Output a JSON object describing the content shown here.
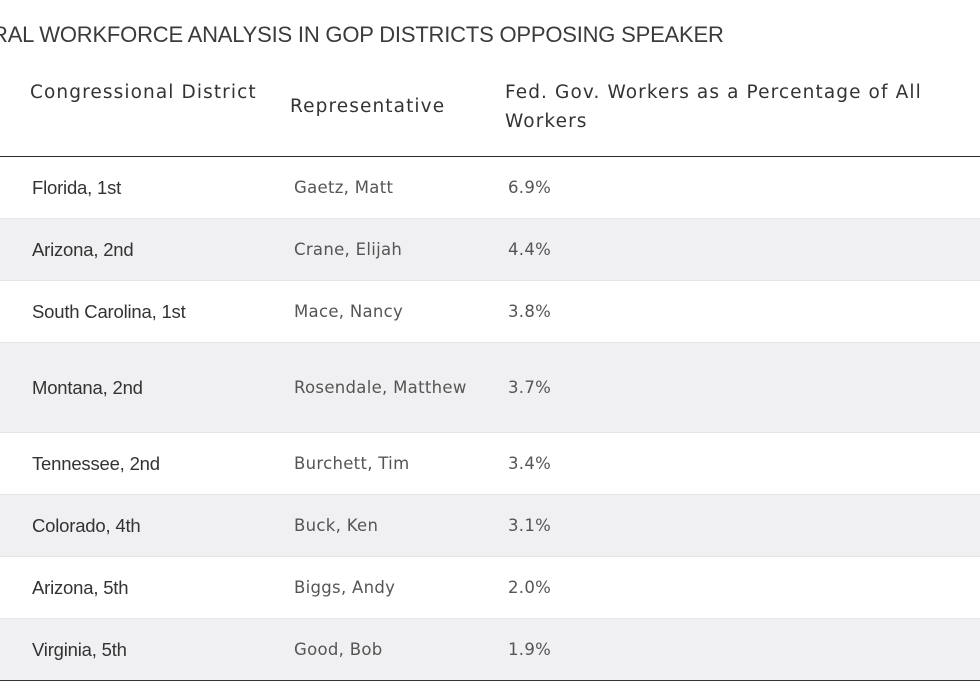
{
  "title": "RAL WORKFORCE ANALYSIS IN GOP DISTRICTS OPPOSING SPEAKER",
  "table": {
    "headers": {
      "district": "Congressional District",
      "representative": "Representative",
      "percentage": "Fed. Gov. Workers as a Percentage of All Workers"
    },
    "rows": [
      {
        "district": "Florida, 1st",
        "representative": "Gaetz, Matt",
        "percentage": "6.9%"
      },
      {
        "district": "Arizona, 2nd",
        "representative": "Crane, Elijah",
        "percentage": "4.4%"
      },
      {
        "district": "South Carolina, 1st",
        "representative": "Mace, Nancy",
        "percentage": "3.8%"
      },
      {
        "district": "Montana, 2nd",
        "representative": "Rosendale, Matthew",
        "percentage": "3.7%"
      },
      {
        "district": "Tennessee, 2nd",
        "representative": "Burchett, Tim",
        "percentage": "3.4%"
      },
      {
        "district": "Colorado, 4th",
        "representative": "Buck, Ken",
        "percentage": "3.1%"
      },
      {
        "district": "Arizona, 5th",
        "representative": "Biggs, Andy",
        "percentage": "2.0%"
      },
      {
        "district": "Virginia, 5th",
        "representative": "Good, Bob",
        "percentage": "1.9%"
      }
    ]
  }
}
